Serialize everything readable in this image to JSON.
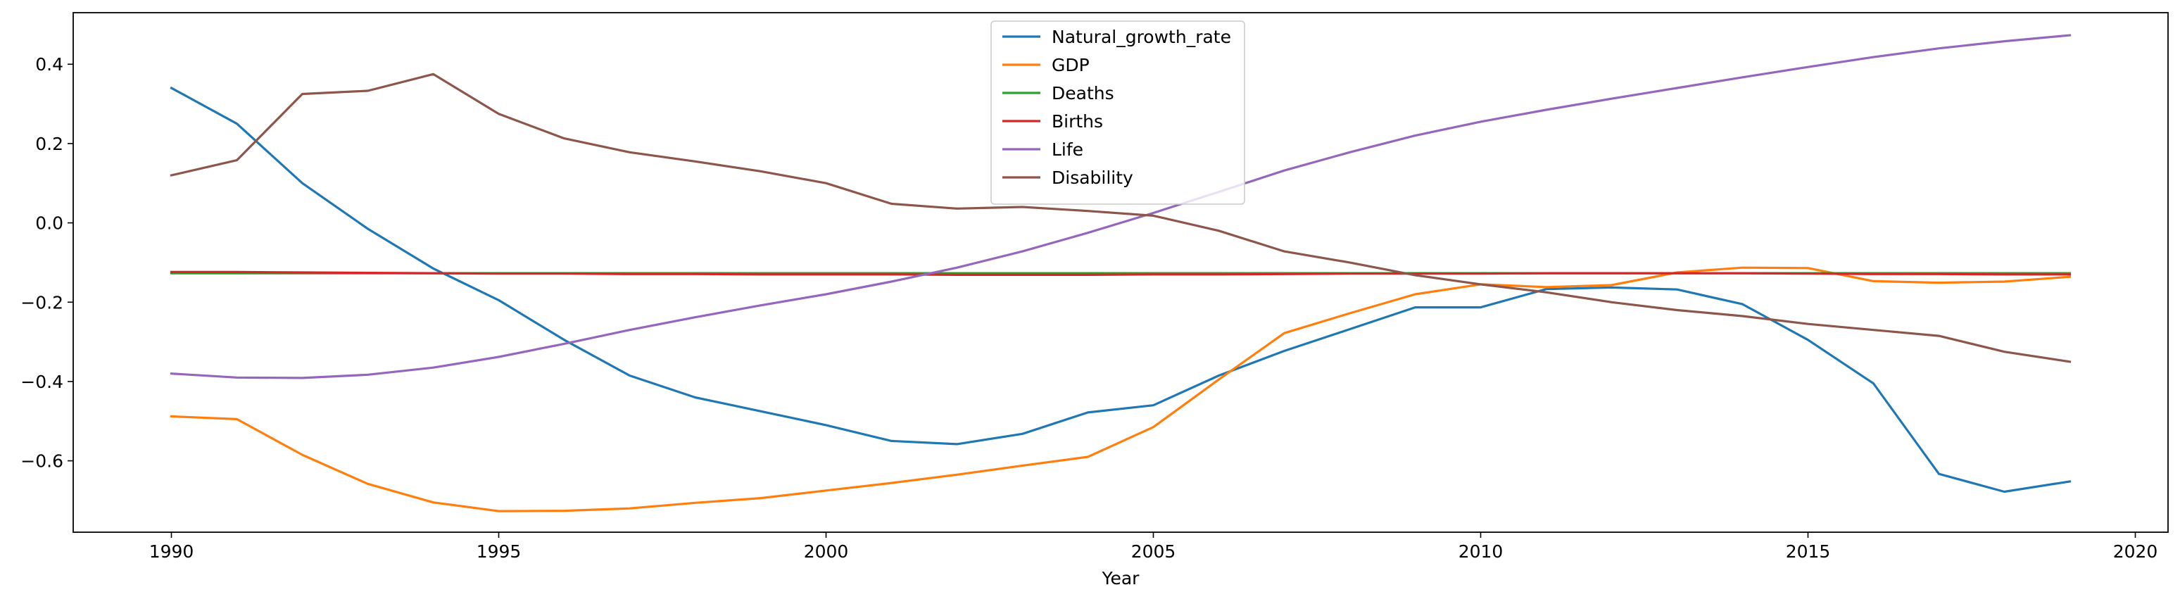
{
  "chart_data": {
    "type": "line",
    "title": "",
    "xlabel": "Year",
    "ylabel": "",
    "xlim": [
      1988.5,
      2020.5
    ],
    "ylim": [
      -0.78,
      0.53
    ],
    "x_ticks": [
      1990,
      1995,
      2000,
      2005,
      2010,
      2015,
      2020
    ],
    "y_ticks": [
      -0.6,
      -0.4,
      -0.2,
      0.0,
      0.2,
      0.4
    ],
    "y_tick_labels": [
      "−0.6",
      "−0.4",
      "−0.2",
      "0.0",
      "0.2",
      "0.4"
    ],
    "grid": false,
    "legend_position": "top-center",
    "x": [
      1990,
      1991,
      1992,
      1993,
      1994,
      1995,
      1996,
      1997,
      1998,
      1999,
      2000,
      2001,
      2002,
      2003,
      2004,
      2005,
      2006,
      2007,
      2008,
      2009,
      2010,
      2011,
      2012,
      2013,
      2014,
      2015,
      2016,
      2017,
      2018,
      2019
    ],
    "series": [
      {
        "name": "Natural_growth_rate",
        "color": "#1f77b4",
        "values": [
          0.34,
          0.25,
          0.1,
          -0.015,
          -0.115,
          -0.195,
          -0.295,
          -0.385,
          -0.44,
          -0.475,
          -0.51,
          -0.55,
          -0.558,
          -0.532,
          -0.478,
          -0.46,
          -0.385,
          -0.323,
          -0.268,
          -0.213,
          -0.213,
          -0.167,
          -0.163,
          -0.168,
          -0.205,
          -0.295,
          -0.405,
          -0.633,
          -0.678,
          -0.652
        ]
      },
      {
        "name": "GDP",
        "color": "#ff7f0e",
        "values": [
          -0.488,
          -0.495,
          -0.585,
          -0.658,
          -0.705,
          -0.727,
          -0.726,
          -0.72,
          -0.706,
          -0.694,
          -0.675,
          -0.656,
          -0.635,
          -0.612,
          -0.59,
          -0.515,
          -0.395,
          -0.278,
          -0.228,
          -0.18,
          -0.155,
          -0.162,
          -0.157,
          -0.125,
          -0.113,
          -0.114,
          -0.147,
          -0.151,
          -0.148,
          -0.136
        ]
      },
      {
        "name": "Deaths",
        "color": "#2ca02c",
        "values": [
          -0.127,
          -0.127,
          -0.127,
          -0.127,
          -0.127,
          -0.127,
          -0.127,
          -0.127,
          -0.127,
          -0.127,
          -0.127,
          -0.127,
          -0.127,
          -0.127,
          -0.127,
          -0.127,
          -0.127,
          -0.127,
          -0.127,
          -0.127,
          -0.127,
          -0.127,
          -0.127,
          -0.127,
          -0.127,
          -0.127,
          -0.127,
          -0.127,
          -0.127,
          -0.127
        ]
      },
      {
        "name": "Births",
        "color": "#d62728",
        "values": [
          -0.124,
          -0.124,
          -0.125,
          -0.126,
          -0.127,
          -0.128,
          -0.128,
          -0.129,
          -0.129,
          -0.13,
          -0.13,
          -0.13,
          -0.131,
          -0.131,
          -0.131,
          -0.13,
          -0.13,
          -0.129,
          -0.128,
          -0.128,
          -0.128,
          -0.127,
          -0.127,
          -0.127,
          -0.127,
          -0.128,
          -0.129,
          -0.129,
          -0.13,
          -0.13
        ]
      },
      {
        "name": "Life",
        "color": "#9467bd",
        "values": [
          -0.38,
          -0.39,
          -0.391,
          -0.383,
          -0.365,
          -0.338,
          -0.305,
          -0.27,
          -0.238,
          -0.208,
          -0.18,
          -0.148,
          -0.113,
          -0.072,
          -0.025,
          0.025,
          0.078,
          0.132,
          0.178,
          0.22,
          0.255,
          0.285,
          0.313,
          0.34,
          0.367,
          0.393,
          0.418,
          0.44,
          0.458,
          0.473
        ]
      },
      {
        "name": "Disability",
        "color": "#8c564b",
        "values": [
          0.12,
          0.158,
          0.325,
          0.333,
          0.375,
          0.275,
          0.213,
          0.178,
          0.155,
          0.13,
          0.1,
          0.048,
          0.036,
          0.04,
          0.03,
          0.018,
          -0.02,
          -0.072,
          -0.1,
          -0.132,
          -0.155,
          -0.175,
          -0.2,
          -0.22,
          -0.235,
          -0.255,
          -0.27,
          -0.285,
          -0.325,
          -0.35
        ]
      }
    ]
  }
}
